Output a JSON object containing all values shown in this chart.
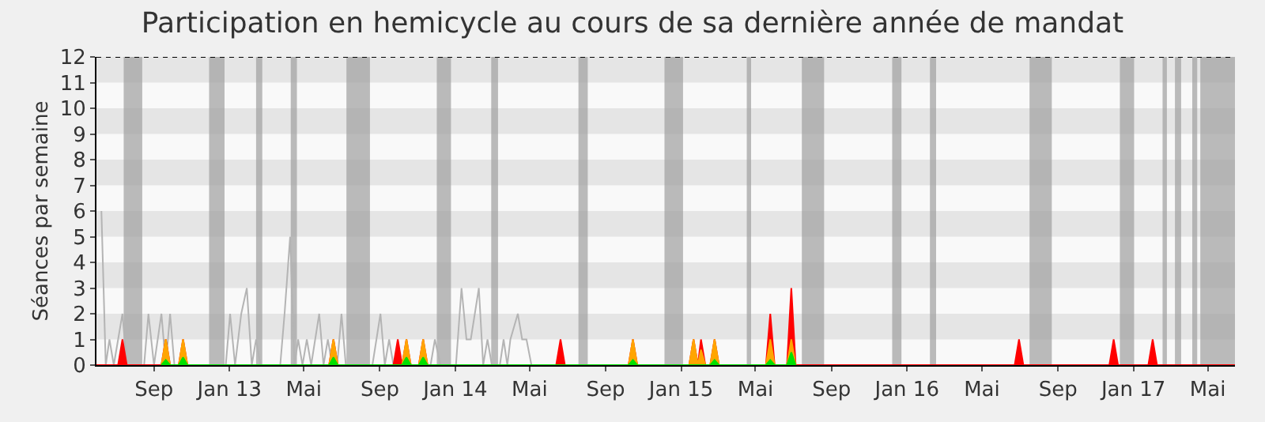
{
  "chart_data": {
    "type": "area",
    "title": "Participation en hemicycle au cours de sa dernière année de mandat",
    "ylabel": "Séances par semaine",
    "xlim": [
      "2012-05-31",
      "2017-06-14"
    ],
    "xticks": [
      {
        "value": "2012-09-01",
        "label": "Sep"
      },
      {
        "value": "2013-01-01",
        "label": "Jan 13"
      },
      {
        "value": "2013-05-01",
        "label": "Mai"
      },
      {
        "value": "2013-09-01",
        "label": "Sep"
      },
      {
        "value": "2014-01-01",
        "label": "Jan 14"
      },
      {
        "value": "2014-05-01",
        "label": "Mai"
      },
      {
        "value": "2014-09-01",
        "label": "Sep"
      },
      {
        "value": "2015-01-01",
        "label": "Jan 15"
      },
      {
        "value": "2015-05-01",
        "label": "Mai"
      },
      {
        "value": "2015-09-01",
        "label": "Sep"
      },
      {
        "value": "2016-01-01",
        "label": "Jan 16"
      },
      {
        "value": "2016-05-01",
        "label": "Mai"
      },
      {
        "value": "2016-09-01",
        "label": "Sep"
      },
      {
        "value": "2017-01-01",
        "label": "Jan 17"
      },
      {
        "value": "2017-05-01",
        "label": "Mai"
      }
    ],
    "ylim": [
      0,
      12
    ],
    "yticks": [
      0,
      1,
      2,
      3,
      4,
      5,
      6,
      7,
      8,
      9,
      10,
      11,
      12
    ],
    "grid": false,
    "marker": "none",
    "line_style": "solid",
    "series": [
      {
        "type": "line",
        "color": "#b4b4b4",
        "x": [
          "2012-06-08",
          "2012-06-15",
          "2012-06-21",
          "2012-06-28",
          "2012-07-12",
          "2012-07-19",
          "2012-08-16",
          "2012-08-23",
          "2012-09-01",
          "2012-09-13",
          "2012-09-20",
          "2012-09-27",
          "2012-10-04",
          "2012-12-26",
          "2013-01-02",
          "2013-01-10",
          "2013-01-20",
          "2013-01-29",
          "2013-02-06",
          "2013-02-13",
          "2013-02-20",
          "2013-03-24",
          "2013-03-31",
          "2013-04-09",
          "2013-04-16",
          "2013-04-22",
          "2013-04-29",
          "2013-05-06",
          "2013-05-13",
          "2013-05-26",
          "2013-06-02",
          "2013-06-09",
          "2013-06-16",
          "2013-06-24",
          "2013-07-01",
          "2013-07-08",
          "2013-08-20",
          "2013-09-02",
          "2013-09-09",
          "2013-09-16",
          "2013-09-23",
          "2013-11-22",
          "2013-11-29",
          "2013-12-08",
          "2014-01-02",
          "2014-01-11",
          "2014-01-19",
          "2014-01-26",
          "2014-02-08",
          "2014-02-15",
          "2014-02-22",
          "2014-03-01",
          "2014-03-14",
          "2014-03-20",
          "2014-03-26",
          "2014-03-31",
          "2014-04-12",
          "2014-04-19",
          "2014-04-26",
          "2014-05-04"
        ],
        "values": [
          6,
          0,
          1,
          0,
          2,
          0,
          0,
          2,
          0,
          2,
          0,
          2,
          0,
          0,
          2,
          0,
          2,
          3,
          0,
          1,
          0,
          0,
          2,
          5,
          0,
          1,
          0,
          1,
          0,
          2,
          0,
          1,
          0,
          0,
          2,
          0,
          0,
          2,
          0,
          1,
          0,
          0,
          1,
          0,
          0,
          3,
          1,
          1,
          3,
          0,
          1,
          0,
          0,
          1,
          0,
          1,
          2,
          1,
          1,
          0
        ]
      },
      {
        "color": "#ff0000",
        "x": [
          "2012-05-31",
          "2012-07-05",
          "2012-07-12",
          "2012-07-19",
          "2012-09-13",
          "2012-09-20",
          "2012-09-27",
          "2012-10-11",
          "2012-10-18",
          "2012-10-25",
          "2013-06-11",
          "2013-06-18",
          "2013-06-25",
          "2013-09-23",
          "2013-09-30",
          "2013-10-07",
          "2013-10-14",
          "2013-10-21",
          "2013-11-03",
          "2013-11-10",
          "2013-11-17",
          "2014-06-13",
          "2014-06-20",
          "2014-06-27",
          "2014-10-08",
          "2014-10-15",
          "2014-10-22",
          "2015-01-14",
          "2015-01-21",
          "2015-01-28",
          "2015-02-02",
          "2015-02-09",
          "2015-02-17",
          "2015-02-24",
          "2015-03-03",
          "2015-05-18",
          "2015-05-25",
          "2015-06-01",
          "2015-06-21",
          "2015-06-28",
          "2015-07-05",
          "2016-06-23",
          "2016-06-30",
          "2016-07-07",
          "2016-11-23",
          "2016-11-30",
          "2016-12-07",
          "2017-01-25",
          "2017-02-01",
          "2017-02-08",
          "2017-06-14"
        ],
        "values": [
          0,
          0,
          1,
          0,
          0,
          1,
          0,
          0,
          1,
          0,
          0,
          1,
          0,
          0,
          1,
          0,
          1,
          0,
          0,
          1,
          0,
          0,
          1,
          0,
          0,
          1,
          0,
          0,
          1,
          0,
          1,
          0,
          0,
          1,
          0,
          0,
          2,
          0,
          0,
          3,
          0,
          0,
          1,
          0,
          0,
          1,
          0,
          0,
          1,
          0,
          0
        ]
      },
      {
        "color": "#ffa500",
        "x": [
          "2012-09-13",
          "2012-09-20",
          "2012-09-27",
          "2012-10-11",
          "2012-10-18",
          "2012-10-25",
          "2013-06-11",
          "2013-06-18",
          "2013-06-25",
          "2013-10-07",
          "2013-10-14",
          "2013-10-21",
          "2013-11-03",
          "2013-11-10",
          "2013-11-17",
          "2014-10-08",
          "2014-10-15",
          "2014-10-22",
          "2015-01-14",
          "2015-01-21",
          "2015-01-28",
          "2015-02-02",
          "2015-02-09",
          "2015-02-17",
          "2015-02-24",
          "2015-03-03",
          "2015-05-18",
          "2015-05-25",
          "2015-06-01",
          "2015-06-21",
          "2015-06-28",
          "2015-07-05"
        ],
        "values": [
          0,
          1,
          0,
          0,
          1,
          0,
          0,
          1,
          0,
          0,
          1,
          0,
          0,
          1,
          0,
          0,
          1,
          0,
          0,
          1,
          0,
          0.6,
          0,
          0,
          1,
          0,
          0,
          1,
          0,
          0,
          1,
          0
        ]
      },
      {
        "color": "#00e000",
        "x": [
          "2012-09-13",
          "2012-09-20",
          "2012-09-27",
          "2012-10-11",
          "2012-10-18",
          "2012-10-25",
          "2013-06-11",
          "2013-06-18",
          "2013-06-25",
          "2013-10-07",
          "2013-10-14",
          "2013-10-21",
          "2013-11-03",
          "2013-11-10",
          "2013-11-17",
          "2014-10-08",
          "2014-10-15",
          "2014-10-22",
          "2015-02-17",
          "2015-02-24",
          "2015-03-03",
          "2015-05-18",
          "2015-05-25",
          "2015-06-01",
          "2015-06-21",
          "2015-06-28",
          "2015-07-05"
        ],
        "values": [
          0,
          0.2,
          0,
          0,
          0.3,
          0,
          0,
          0.3,
          0,
          0,
          0.3,
          0,
          0,
          0.3,
          0,
          0,
          0.2,
          0,
          0,
          0.2,
          0,
          0,
          0.2,
          0,
          0,
          0.5,
          0
        ]
      }
    ],
    "bands": [
      {
        "axis": "y",
        "from": 1,
        "to": 2,
        "color": "#e5e5e5"
      },
      {
        "axis": "y",
        "from": 3,
        "to": 4,
        "color": "#e5e5e5"
      },
      {
        "axis": "y",
        "from": 5,
        "to": 6,
        "color": "#e5e5e5"
      },
      {
        "axis": "y",
        "from": 7,
        "to": 8,
        "color": "#e5e5e5"
      },
      {
        "axis": "y",
        "from": 9,
        "to": 10,
        "color": "#e5e5e5"
      },
      {
        "axis": "y",
        "from": 11,
        "to": 12,
        "color": "#e5e5e5"
      },
      {
        "axis": "x",
        "from": "2012-07-14",
        "to": "2012-08-13",
        "color": "#a0a0a0"
      },
      {
        "axis": "x",
        "from": "2012-11-29",
        "to": "2012-12-24",
        "color": "#a0a0a0"
      },
      {
        "axis": "x",
        "from": "2013-02-13",
        "to": "2013-02-23",
        "color": "#a0a0a0"
      },
      {
        "axis": "x",
        "from": "2013-04-10",
        "to": "2013-04-20",
        "color": "#a0a0a0"
      },
      {
        "axis": "x",
        "from": "2013-07-09",
        "to": "2013-08-16",
        "color": "#a0a0a0"
      },
      {
        "axis": "x",
        "from": "2013-12-02",
        "to": "2013-12-25",
        "color": "#a0a0a0"
      },
      {
        "axis": "x",
        "from": "2014-02-28",
        "to": "2014-03-11",
        "color": "#a0a0a0"
      },
      {
        "axis": "x",
        "from": "2014-07-19",
        "to": "2014-08-03",
        "color": "#a0a0a0"
      },
      {
        "axis": "x",
        "from": "2014-12-05",
        "to": "2015-01-04",
        "color": "#a0a0a0"
      },
      {
        "axis": "x",
        "from": "2015-04-17",
        "to": "2015-04-24",
        "color": "#a0a0a0"
      },
      {
        "axis": "x",
        "from": "2015-07-15",
        "to": "2015-08-20",
        "color": "#a0a0a0"
      },
      {
        "axis": "x",
        "from": "2015-12-08",
        "to": "2015-12-23",
        "color": "#a0a0a0"
      },
      {
        "axis": "x",
        "from": "2016-02-07",
        "to": "2016-02-17",
        "color": "#a0a0a0"
      },
      {
        "axis": "x",
        "from": "2016-07-17",
        "to": "2016-08-22",
        "color": "#a0a0a0"
      },
      {
        "axis": "x",
        "from": "2016-12-10",
        "to": "2017-01-02",
        "color": "#a0a0a0"
      },
      {
        "axis": "x",
        "from": "2017-02-17",
        "to": "2017-02-24",
        "color": "#a0a0a0"
      },
      {
        "axis": "x",
        "from": "2017-03-09",
        "to": "2017-03-19",
        "color": "#a0a0a0"
      },
      {
        "axis": "x",
        "from": "2017-04-06",
        "to": "2017-04-14",
        "color": "#a0a0a0"
      },
      {
        "axis": "x",
        "from": "2017-04-19",
        "to": "2017-06-14",
        "color": "#a0a0a0"
      }
    ],
    "ref_lines": [
      {
        "axis": "y",
        "value": 12,
        "color": "#000000",
        "line_style": "dotted"
      }
    ]
  }
}
